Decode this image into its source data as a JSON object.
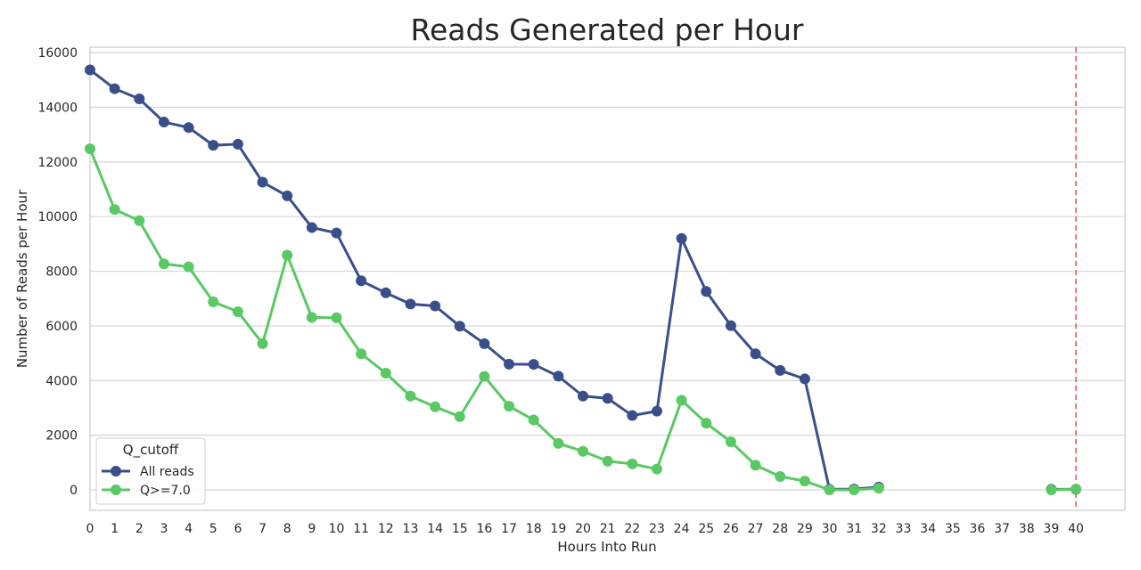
{
  "chart_data": {
    "type": "line",
    "title": "Reads Generated per Hour",
    "xlabel": "Hours Into Run",
    "ylabel": "Number of Reads per Hour",
    "ylim": [
      -750,
      16200
    ],
    "yticks": [
      0,
      2000,
      4000,
      6000,
      8000,
      10000,
      12000,
      14000,
      16000
    ],
    "categories": [
      "0",
      "1",
      "2",
      "3",
      "4",
      "5",
      "6",
      "7",
      "8",
      "9",
      "10",
      "11",
      "12",
      "13",
      "14",
      "15",
      "16",
      "17",
      "18",
      "19",
      "20",
      "21",
      "22",
      "23",
      "24",
      "25",
      "26",
      "27",
      "28",
      "29",
      "30",
      "31",
      "32",
      "33",
      "34",
      "35",
      "36",
      "37",
      "38",
      "39",
      "40"
    ],
    "grid": "horizontal",
    "legend": {
      "title": "Q_cutoff",
      "placement": "lower-left"
    },
    "vline": {
      "x": "40",
      "color": "#ff6b6b",
      "style": "dashed"
    },
    "series": [
      {
        "name": "All reads",
        "color": "#3a4f8a",
        "values": [
          15370,
          14680,
          14310,
          13460,
          13260,
          12610,
          12650,
          11260,
          10760,
          9600,
          9400,
          7650,
          7210,
          6800,
          6730,
          5990,
          5350,
          4600,
          4590,
          4160,
          3430,
          3350,
          2720,
          2880,
          9200,
          7260,
          6010,
          4980,
          4370,
          4060,
          20,
          30,
          100,
          null,
          null,
          null,
          null,
          null,
          null,
          20,
          20
        ]
      },
      {
        "name": "Q>=7.0",
        "color": "#5ac864",
        "values": [
          12480,
          10260,
          9850,
          8270,
          8160,
          6880,
          6520,
          5350,
          8590,
          6310,
          6300,
          4980,
          4270,
          3430,
          3040,
          2680,
          4150,
          3060,
          2560,
          1700,
          1410,
          1050,
          950,
          760,
          3280,
          2440,
          1760,
          900,
          490,
          320,
          0,
          0,
          60,
          null,
          null,
          null,
          null,
          null,
          null,
          0,
          30
        ]
      }
    ]
  }
}
